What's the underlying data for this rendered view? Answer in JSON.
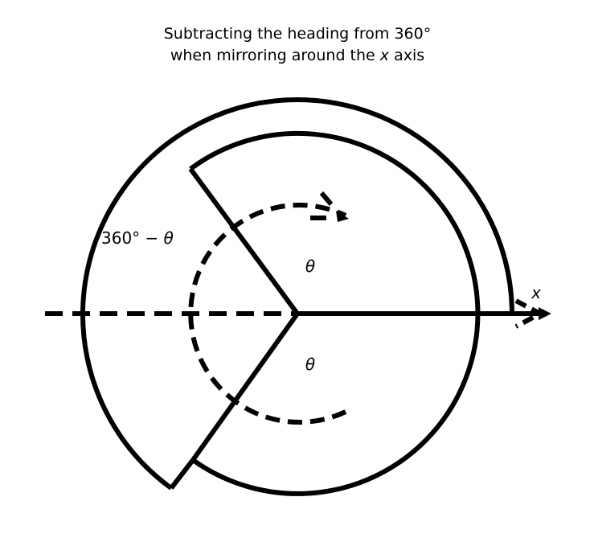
{
  "title": {
    "line1": "Subtracting the heading from 360°",
    "line2_prefix": "when mirroring around the ",
    "line2_var": "x",
    "line2_suffix": " axis"
  },
  "labels": {
    "theta_upper": "θ",
    "theta_lower": "θ",
    "complement_prefix": "360° − ",
    "complement_var": "θ",
    "x_axis": "x"
  },
  "colors": {
    "ink": "#000000",
    "background": "#ffffff"
  }
}
